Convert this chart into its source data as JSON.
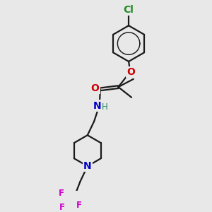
{
  "bg_color": "#e8e8e8",
  "bond_color": "#1a1a1a",
  "bond_width": 1.6,
  "atom_colors": {
    "O": "#cc0000",
    "N": "#0000cc",
    "Cl": "#228b22",
    "F": "#cc00cc",
    "C": "#1a1a1a",
    "H": "#2a8a6a"
  },
  "font_size_atom": 10,
  "font_size_small": 8.5,
  "font_size_methyl": 7.5
}
